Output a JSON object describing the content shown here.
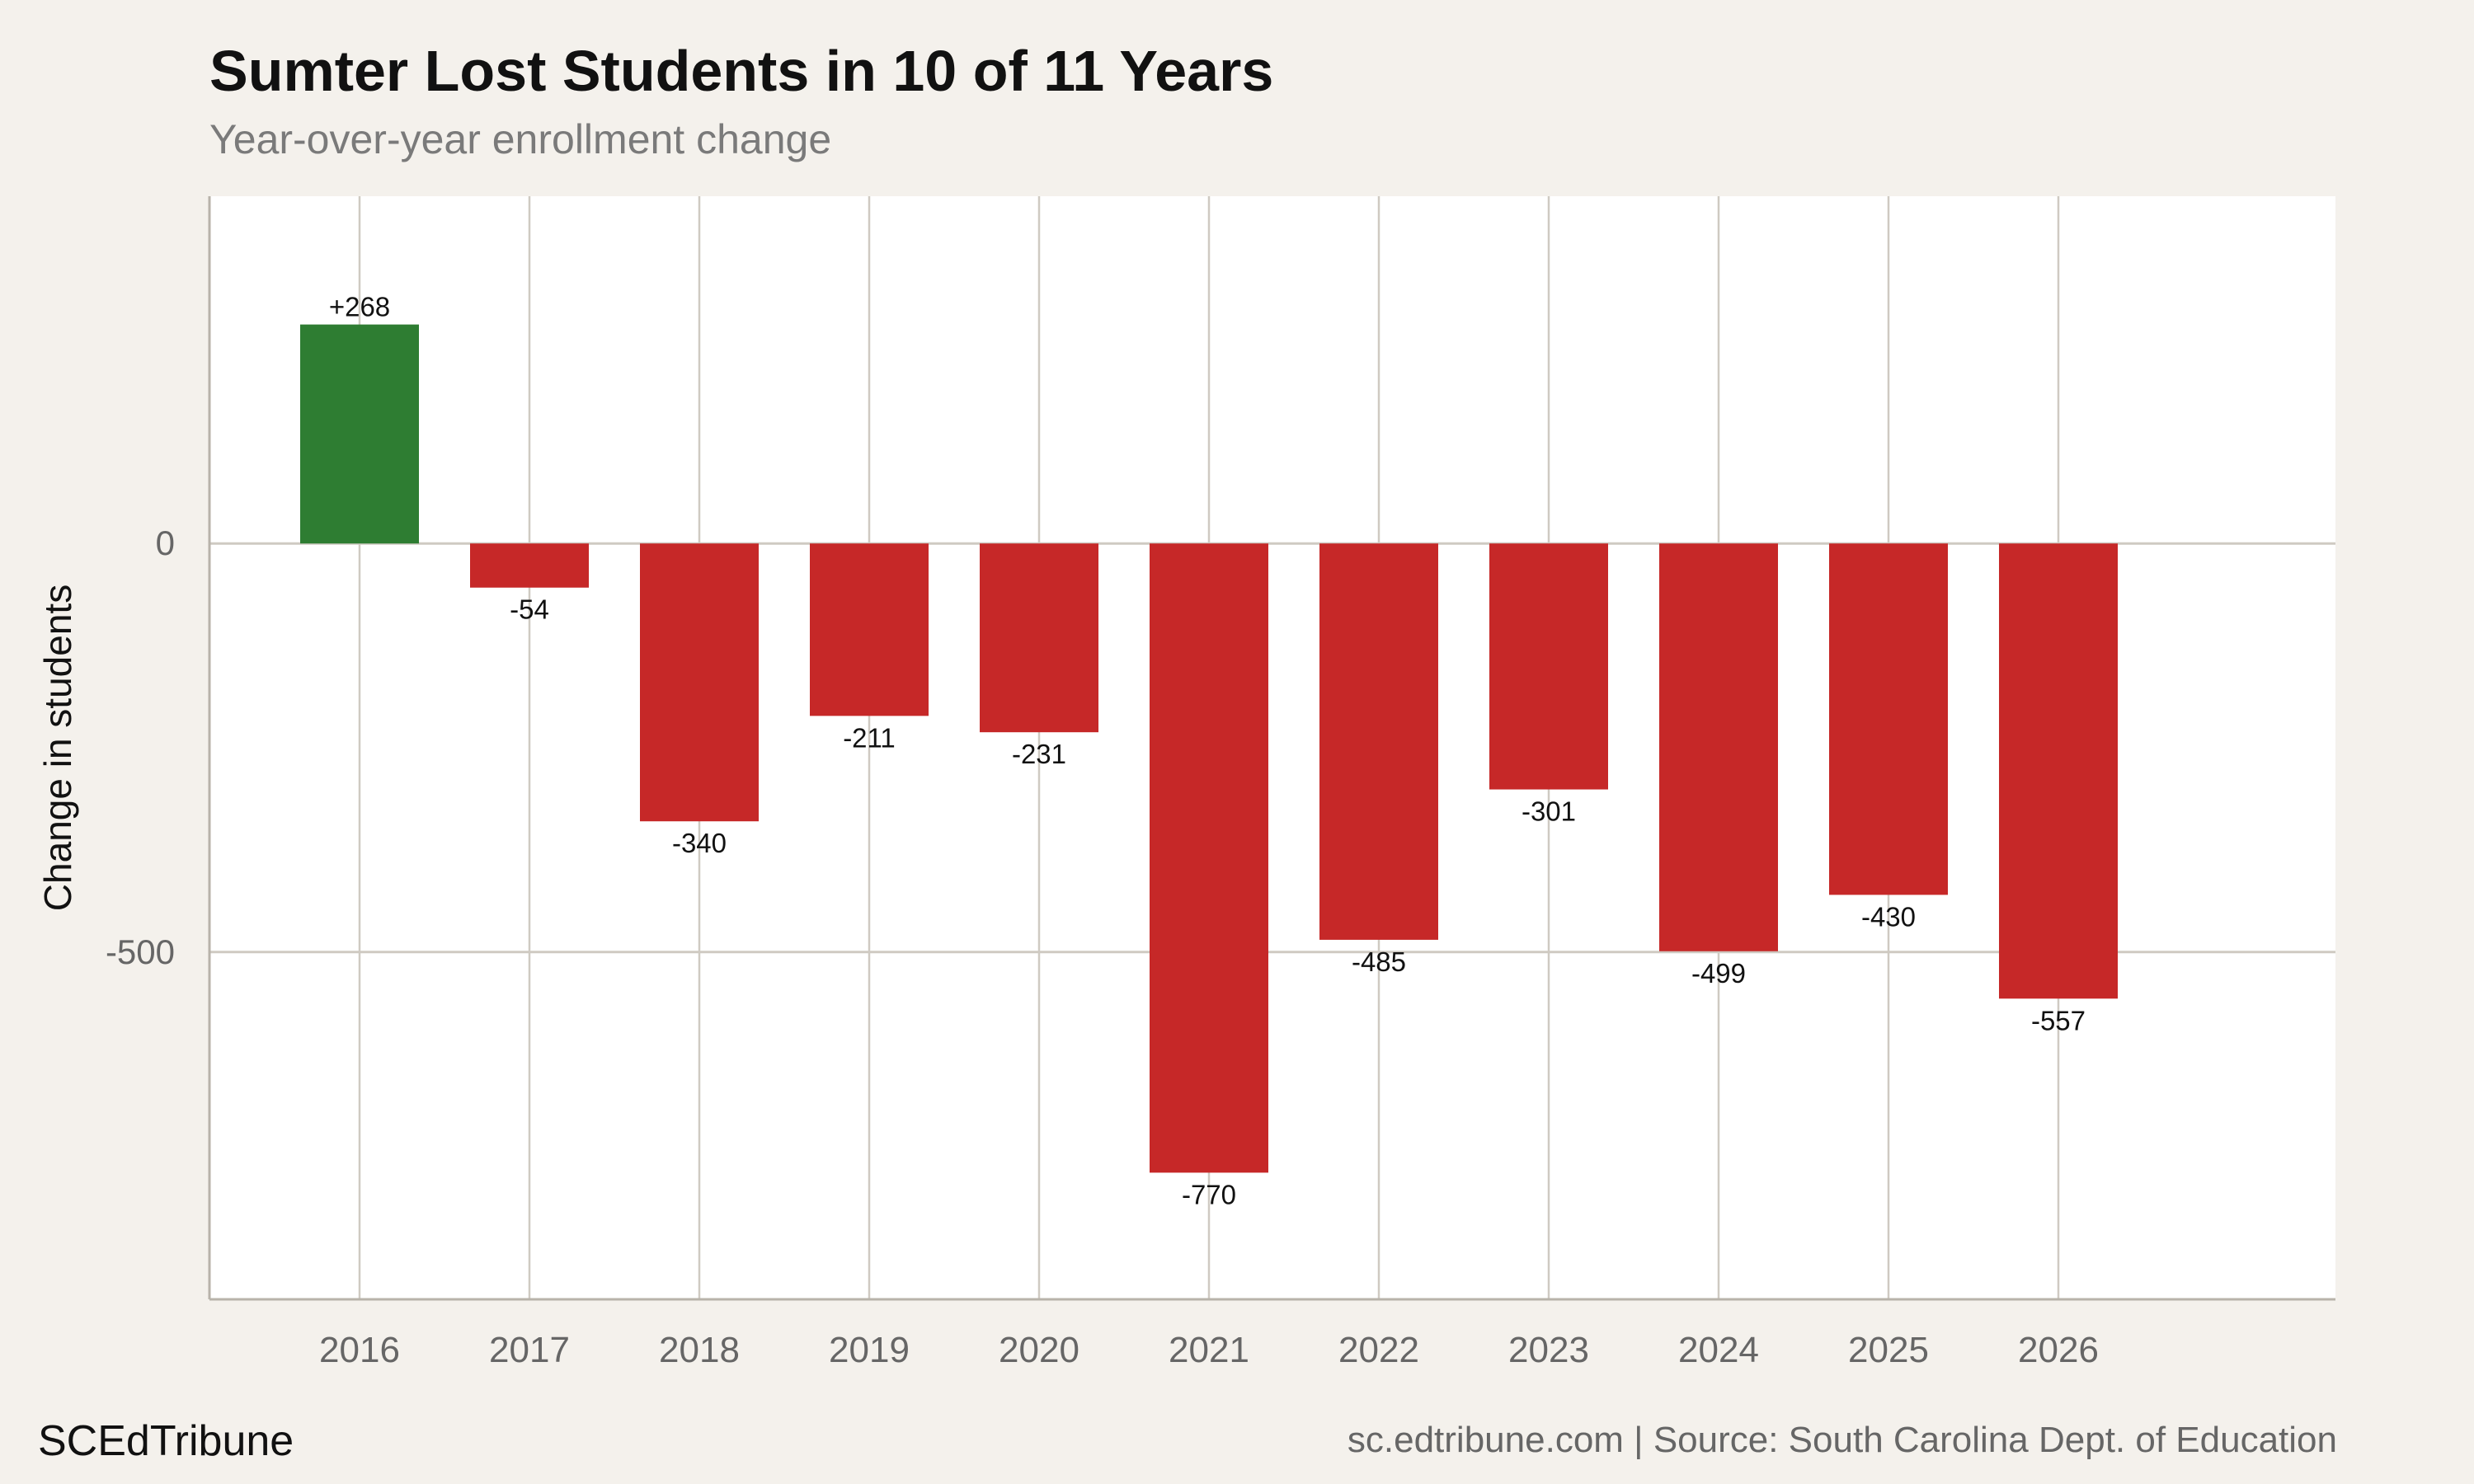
{
  "header": {
    "title": "Sumter Lost Students in 10 of 11 Years",
    "subtitle": "Year-over-year enrollment change"
  },
  "footer": {
    "brand": "SCEdTribune",
    "source": "sc.edtribune.com | Source: South Carolina Dept. of Education"
  },
  "colors": {
    "positive": "#2e7d32",
    "negative": "#c62828",
    "background": "#f4f1ec",
    "plot_background": "#ffffff",
    "grid": "#cfcac2"
  },
  "chart_data": {
    "type": "bar",
    "title": "Sumter Lost Students in 10 of 11 Years",
    "subtitle": "Year-over-year enrollment change",
    "xlabel": "",
    "ylabel": "Change in students",
    "categories": [
      "2016",
      "2017",
      "2018",
      "2019",
      "2020",
      "2021",
      "2022",
      "2023",
      "2024",
      "2025",
      "2026"
    ],
    "values": [
      268,
      -54,
      -340,
      -211,
      -231,
      -770,
      -485,
      -301,
      -499,
      -430,
      -557
    ],
    "labels": [
      "+268",
      "-54",
      "-340",
      "-211",
      "-231",
      "-770",
      "-485",
      "-301",
      "-499",
      "-430",
      "-557"
    ],
    "yticks": [
      0,
      -500
    ],
    "ytick_labels": [
      "0",
      "-500"
    ],
    "ylim": [
      -925,
      425
    ],
    "grid": true
  }
}
